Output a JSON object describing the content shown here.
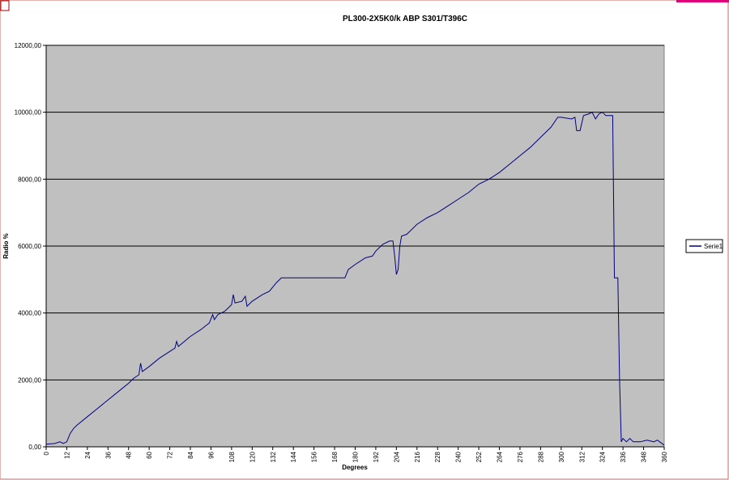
{
  "chart_data": {
    "type": "line",
    "title": "PL300-2X5K0/k ABP S301/T396C",
    "x_label": "Degrees",
    "y_label": "Radio %",
    "xlim": [
      0,
      360
    ],
    "ylim": [
      0,
      12000
    ],
    "xticks": [
      0,
      12,
      24,
      36,
      48,
      60,
      72,
      84,
      96,
      108,
      120,
      132,
      144,
      156,
      168,
      180,
      192,
      204,
      216,
      228,
      240,
      252,
      264,
      276,
      288,
      300,
      312,
      324,
      336,
      348,
      360
    ],
    "yticks": [
      {
        "value": 0,
        "label": "0,00"
      },
      {
        "value": 2000,
        "label": "2000,00"
      },
      {
        "value": 4000,
        "label": "4000,00"
      },
      {
        "value": 6000,
        "label": "6000,00"
      },
      {
        "value": 8000,
        "label": "8000,00"
      },
      {
        "value": 10000,
        "label": "10000,00"
      },
      {
        "value": 12000,
        "label": "12000,00"
      }
    ],
    "grid": true,
    "legend": "right",
    "x": [
      0,
      5,
      8,
      10,
      12,
      14,
      16,
      18,
      24,
      30,
      36,
      42,
      48,
      51,
      54,
      55,
      56,
      60,
      66,
      72,
      75,
      76,
      77,
      84,
      90,
      95,
      97,
      98,
      100,
      104,
      106,
      108,
      109,
      110,
      114,
      116,
      117,
      120,
      126,
      130,
      134,
      137,
      140,
      150,
      160,
      170,
      174,
      176,
      180,
      186,
      190,
      192,
      196,
      200,
      202,
      203,
      204,
      205,
      206,
      207,
      210,
      216,
      222,
      228,
      234,
      240,
      246,
      252,
      258,
      264,
      270,
      276,
      282,
      288,
      294,
      298,
      300,
      306,
      308,
      309,
      311,
      313,
      316,
      318,
      320,
      322,
      324,
      326,
      330,
      331,
      333,
      334,
      335,
      336,
      338,
      340,
      342,
      346,
      350,
      354,
      356,
      360
    ],
    "series": [
      {
        "name": "Serie1",
        "color": "#000080",
        "values": [
          80,
          100,
          150,
          100,
          150,
          400,
          550,
          650,
          900,
          1150,
          1400,
          1650,
          1900,
          2050,
          2150,
          2500,
          2250,
          2400,
          2650,
          2850,
          2950,
          3150,
          3000,
          3300,
          3500,
          3700,
          3950,
          3800,
          3950,
          4050,
          4150,
          4250,
          4550,
          4300,
          4350,
          4500,
          4200,
          4350,
          4550,
          4650,
          4900,
          5050,
          5050,
          5050,
          5050,
          5050,
          5050,
          5300,
          5450,
          5650,
          5700,
          5850,
          6050,
          6150,
          6150,
          5700,
          5150,
          5300,
          6000,
          6300,
          6350,
          6650,
          6850,
          7000,
          7200,
          7400,
          7600,
          7850,
          8000,
          8200,
          8450,
          8700,
          8950,
          9250,
          9550,
          9850,
          9850,
          9800,
          9850,
          9450,
          9450,
          9900,
          9950,
          10000,
          9800,
          9950,
          10000,
          9900,
          9900,
          5050,
          5050,
          2000,
          150,
          250,
          150,
          250,
          150,
          150,
          200,
          150,
          200,
          50
        ]
      }
    ]
  }
}
